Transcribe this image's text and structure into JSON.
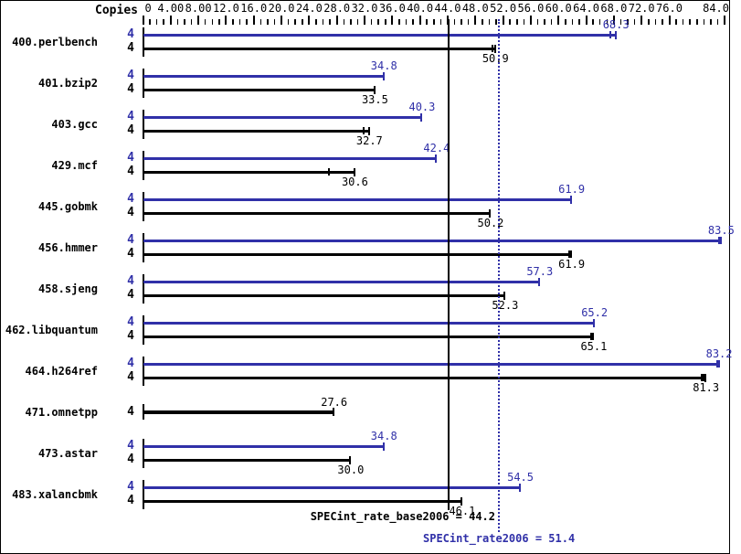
{
  "chart_data": {
    "type": "bar",
    "orientation": "horizontal",
    "title": "",
    "copies_label": "Copies",
    "colors": {
      "peak": "#3030a8",
      "base": "#000000",
      "background": "#ffffff"
    },
    "x_axis": {
      "min": 0,
      "max": 84,
      "major_step": 4,
      "minor_step": 1,
      "unlabeled_major": [
        80
      ],
      "tick_labels": [
        {
          "v": 0,
          "t": "0"
        },
        {
          "v": 4,
          "t": "4.00"
        },
        {
          "v": 8,
          "t": "8.00"
        },
        {
          "v": 12,
          "t": "12.0"
        },
        {
          "v": 16,
          "t": "16.0"
        },
        {
          "v": 20,
          "t": "20.0"
        },
        {
          "v": 24,
          "t": "24.0"
        },
        {
          "v": 28,
          "t": "28.0"
        },
        {
          "v": 32,
          "t": "32.0"
        },
        {
          "v": 36,
          "t": "36.0"
        },
        {
          "v": 40,
          "t": "40.0"
        },
        {
          "v": 44,
          "t": "44.0"
        },
        {
          "v": 48,
          "t": "48.0"
        },
        {
          "v": 52,
          "t": "52.0"
        },
        {
          "v": 56,
          "t": "56.0"
        },
        {
          "v": 60,
          "t": "60.0"
        },
        {
          "v": 64,
          "t": "64.0"
        },
        {
          "v": 68,
          "t": "68.0"
        },
        {
          "v": 72,
          "t": "72.0"
        },
        {
          "v": 76,
          "t": "76.0"
        },
        {
          "v": 84,
          "t": "84.0"
        }
      ]
    },
    "benchmarks": [
      {
        "name": "400.perlbench",
        "rows": [
          {
            "kind": "peak",
            "copies": "4",
            "value": 68.3,
            "label": "68.3",
            "marks": [
              67.5
            ],
            "thick_end": false
          },
          {
            "kind": "base",
            "copies": "4",
            "value": 50.9,
            "label": "50.9",
            "marks": [
              50.5
            ],
            "thick_end": false
          }
        ]
      },
      {
        "name": "401.bzip2",
        "rows": [
          {
            "kind": "peak",
            "copies": "4",
            "value": 34.8,
            "label": "34.8",
            "marks": [],
            "thick_end": false
          },
          {
            "kind": "base",
            "copies": "4",
            "value": 33.5,
            "label": "33.5",
            "marks": [],
            "thick_end": false
          }
        ]
      },
      {
        "name": "403.gcc",
        "rows": [
          {
            "kind": "peak",
            "copies": "4",
            "value": 40.3,
            "label": "40.3",
            "marks": [],
            "thick_end": false
          },
          {
            "kind": "base",
            "copies": "4",
            "value": 32.7,
            "label": "32.7",
            "marks": [
              31.8
            ],
            "thick_end": false
          }
        ]
      },
      {
        "name": "429.mcf",
        "rows": [
          {
            "kind": "peak",
            "copies": "4",
            "value": 42.4,
            "label": "42.4",
            "marks": [],
            "thick_end": false
          },
          {
            "kind": "base",
            "copies": "4",
            "value": 30.6,
            "label": "30.6",
            "marks": [
              26.9
            ],
            "thick_end": false
          }
        ]
      },
      {
        "name": "445.gobmk",
        "rows": [
          {
            "kind": "peak",
            "copies": "4",
            "value": 61.9,
            "label": "61.9",
            "marks": [],
            "thick_end": false
          },
          {
            "kind": "base",
            "copies": "4",
            "value": 50.2,
            "label": "50.2",
            "marks": [],
            "thick_end": false
          }
        ]
      },
      {
        "name": "456.hmmer",
        "rows": [
          {
            "kind": "peak",
            "copies": "4",
            "value": 83.5,
            "label": "83.5",
            "marks": [],
            "thick_end": true
          },
          {
            "kind": "base",
            "copies": "4",
            "value": 61.9,
            "label": "61.9",
            "marks": [],
            "thick_end": true
          }
        ]
      },
      {
        "name": "458.sjeng",
        "rows": [
          {
            "kind": "peak",
            "copies": "4",
            "value": 57.3,
            "label": "57.3",
            "marks": [],
            "thick_end": false
          },
          {
            "kind": "base",
            "copies": "4",
            "value": 52.3,
            "label": "52.3",
            "marks": [],
            "thick_end": false
          }
        ]
      },
      {
        "name": "462.libquantum",
        "rows": [
          {
            "kind": "peak",
            "copies": "4",
            "value": 65.2,
            "label": "65.2",
            "marks": [],
            "thick_end": false
          },
          {
            "kind": "base",
            "copies": "4",
            "value": 65.1,
            "label": "65.1",
            "marks": [],
            "thick_end": true
          }
        ]
      },
      {
        "name": "464.h264ref",
        "rows": [
          {
            "kind": "peak",
            "copies": "4",
            "value": 83.2,
            "label": "83.2",
            "marks": [],
            "thick_end": true
          },
          {
            "kind": "base",
            "copies": "4",
            "value": 81.3,
            "label": "81.3",
            "marks": [
              80.7,
              81.0
            ],
            "thick_end": false
          }
        ]
      },
      {
        "name": "471.omnetpp",
        "rows": [
          {
            "kind": "single",
            "copies": "4",
            "value": 27.6,
            "label": "27.6",
            "marks": [],
            "thick_end": false
          }
        ]
      },
      {
        "name": "473.astar",
        "rows": [
          {
            "kind": "peak",
            "copies": "4",
            "value": 34.8,
            "label": "34.8",
            "marks": [],
            "thick_end": false
          },
          {
            "kind": "base",
            "copies": "4",
            "value": 30.0,
            "label": "30.0",
            "marks": [],
            "thick_end": false
          }
        ]
      },
      {
        "name": "483.xalancbmk",
        "rows": [
          {
            "kind": "peak",
            "copies": "4",
            "value": 54.5,
            "label": "54.5",
            "marks": [],
            "thick_end": false
          },
          {
            "kind": "base",
            "copies": "4",
            "value": 46.1,
            "label": "46.1",
            "marks": [],
            "thick_end": false
          }
        ]
      }
    ],
    "summary": {
      "base": {
        "text": "SPECint_rate_base2006 = 44.2",
        "value": 44.2
      },
      "peak": {
        "text": "SPECint_rate2006 = 51.4",
        "value": 51.4
      }
    }
  }
}
